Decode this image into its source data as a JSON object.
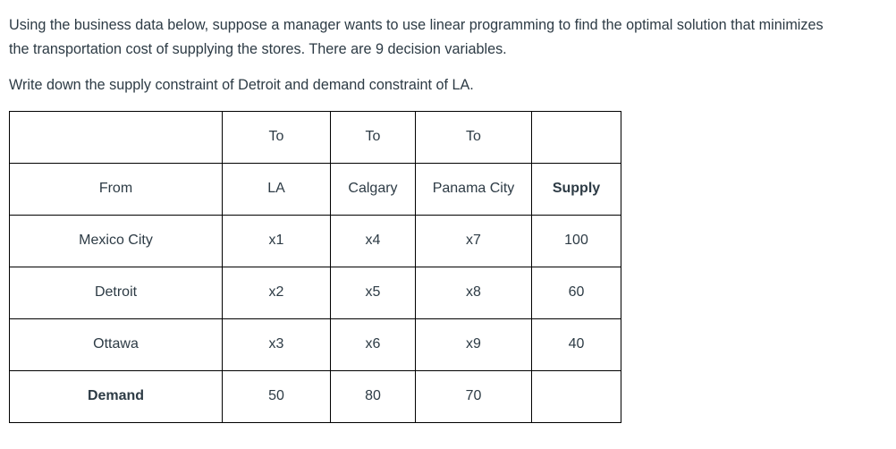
{
  "question": {
    "line1": "Using the business data below, suppose a manager wants to use linear programming to find the optimal solution that minimizes",
    "line2": "the transportation cost of supplying the stores. There are 9 decision variables.",
    "instruction": "Write down the supply constraint of Detroit and demand constraint of LA."
  },
  "table": {
    "header_row": [
      "",
      "To",
      "To",
      "To",
      ""
    ],
    "column_header_row": [
      "From",
      "LA",
      "Calgary",
      "Panama City",
      "Supply"
    ],
    "rows": [
      {
        "from": "Mexico City",
        "la": "x1",
        "calgary": "x4",
        "panama_city": "x7",
        "supply": "100"
      },
      {
        "from": "Detroit",
        "la": "x2",
        "calgary": "x5",
        "panama_city": "x8",
        "supply": "60"
      },
      {
        "from": "Ottawa",
        "la": "x3",
        "calgary": "x6",
        "panama_city": "x9",
        "supply": "40"
      }
    ],
    "demand_row": {
      "label": "Demand",
      "la": "50",
      "calgary": "80",
      "panama_city": "70",
      "supply": ""
    }
  },
  "colors": {
    "text": "#2d3b45",
    "border": "#000000",
    "background": "#ffffff"
  }
}
